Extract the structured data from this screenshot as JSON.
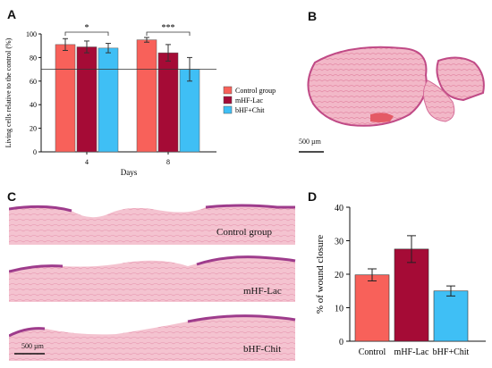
{
  "panels": {
    "a_label": "A",
    "b_label": "B",
    "c_label": "C",
    "d_label": "D"
  },
  "chart_data": [
    {
      "type": "bar",
      "panel": "A",
      "ylabel": "Living cells relative to the control (%)",
      "xlabel": "Days",
      "categories": [
        "4",
        "8"
      ],
      "ylim": [
        0,
        100
      ],
      "yticks": [
        "0",
        "20",
        "40",
        "60",
        "80",
        "100"
      ],
      "reference_line": 70,
      "series": [
        {
          "name": "Control group",
          "color": "#f8615a",
          "values": [
            91,
            95
          ],
          "errors": [
            5,
            2
          ]
        },
        {
          "name": "mHF-Lac",
          "color": "#a50b36",
          "values": [
            89,
            84
          ],
          "errors": [
            5,
            7
          ]
        },
        {
          "name": "bHF+Chit",
          "color": "#3fbff5",
          "values": [
            88,
            70
          ],
          "errors": [
            4,
            10
          ]
        }
      ],
      "significance": [
        {
          "group": "4",
          "label": "*"
        },
        {
          "group": "8",
          "label": "***"
        }
      ],
      "legend_placement": "right"
    },
    {
      "type": "bar",
      "panel": "D",
      "ylabel": "% of wound closure",
      "xlabel": "",
      "categories": [
        "Control",
        "mHF-Lac",
        "bHF+Chit"
      ],
      "ylim": [
        0,
        40
      ],
      "yticks": [
        "0",
        "10",
        "20",
        "30",
        "40"
      ],
      "values": [
        19.8,
        27.5,
        15.0
      ],
      "errors": [
        1.8,
        4.0,
        1.5
      ],
      "colors": [
        "#f8615a",
        "#a50b36",
        "#3fbff5"
      ]
    }
  ],
  "panel_b": {
    "scale_label": "500 µm"
  },
  "panel_c": {
    "rows": [
      {
        "label": "Control group"
      },
      {
        "label": "mHF-Lac"
      },
      {
        "label": "bHF-Chit"
      }
    ],
    "scale_label": "500 µm"
  }
}
